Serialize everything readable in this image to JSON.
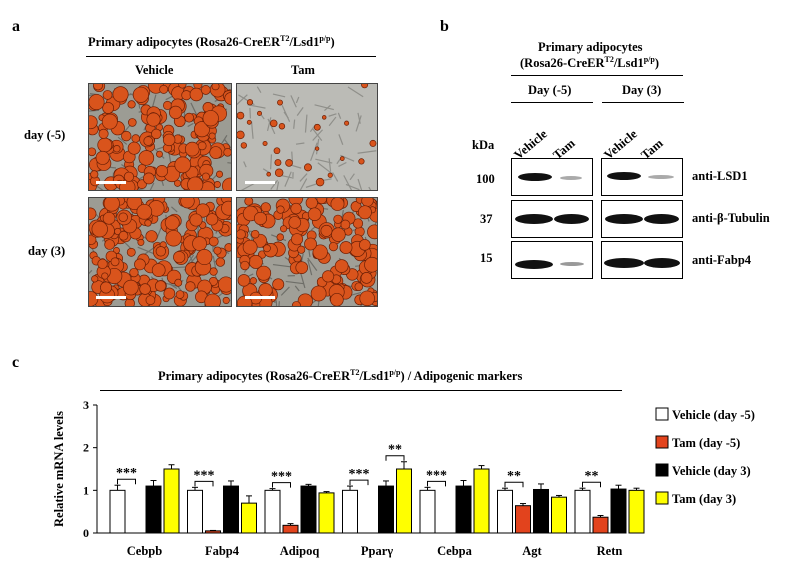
{
  "panel_a": {
    "label": "a",
    "title": "Primary adipocytes (Rosa26-CreER",
    "title_sup": "T2",
    "title_tail": "/Lsd1",
    "title_sup2": "p/p",
    "title_end": ")",
    "col_vehicle": "Vehicle",
    "col_tam": "Tam",
    "row1": "day (-5)",
    "row2": "day (3)",
    "colors": {
      "oil_red": "#d9541c",
      "background": "#a9a9a3"
    }
  },
  "panel_b": {
    "label": "b",
    "title_line1": "Primary adipocytes",
    "title_line2a": "(Rosa26-CreER",
    "title_sup": "T2",
    "title_line2b": "/Lsd1",
    "title_sup2": "p/p",
    "title_line2c": ")",
    "group1": "Day (-5)",
    "group2": "Day (3)",
    "lane_vehicle": "Vehicle",
    "lane_tam": "Tam",
    "kda": "kDa",
    "mw": [
      "100",
      "37",
      "15"
    ],
    "blots": [
      "anti-LSD1",
      "anti-β-Tubulin",
      "anti-Fabp4"
    ]
  },
  "panel_c": {
    "label": "c",
    "title_a": "Primary adipocytes (Rosa26-CreER",
    "title_sup": "T2",
    "title_b": "/Lsd1",
    "title_sup2": "p/p",
    "title_c": ") / Adipogenic markers"
  },
  "chart_data": {
    "type": "bar",
    "ylabel": "Relative mRNA levels",
    "ylim": [
      0,
      3
    ],
    "yticks": [
      "0",
      "1",
      "2",
      "3"
    ],
    "categories": [
      "Cebpb",
      "Fabp4",
      "Adipoq",
      "Pparγ",
      "Cebpa",
      "Agt",
      "Retn"
    ],
    "series": [
      {
        "name": "Vehicle (day -5)",
        "color": "#ffffff",
        "values": [
          1.0,
          1.0,
          1.0,
          1.0,
          1.0,
          1.0,
          1.0
        ],
        "err": [
          0.12,
          0.07,
          0.04,
          0.1,
          0.07,
          0.05,
          0.05
        ]
      },
      {
        "name": "Tam (day -5)",
        "color": "#e2431d",
        "values": [
          0.0,
          0.05,
          0.18,
          0.0,
          0.0,
          0.64,
          0.37
        ],
        "err": [
          0.0,
          0.01,
          0.04,
          0.0,
          0.0,
          0.05,
          0.04
        ]
      },
      {
        "name": "Vehicle (day 3)",
        "color": "#000000",
        "values": [
          1.1,
          1.1,
          1.1,
          1.1,
          1.1,
          1.02,
          1.03
        ],
        "err": [
          0.13,
          0.12,
          0.04,
          0.12,
          0.13,
          0.13,
          0.09
        ]
      },
      {
        "name": "Tam (day 3)",
        "color": "#ffff00",
        "values": [
          1.5,
          0.7,
          0.94,
          1.5,
          1.5,
          0.84,
          1.0
        ],
        "err": [
          0.1,
          0.17,
          0.03,
          0.17,
          0.08,
          0.04,
          0.05
        ]
      }
    ],
    "significance": [
      {
        "category": 0,
        "label": "***",
        "pair": [
          0,
          1
        ]
      },
      {
        "category": 1,
        "label": "***",
        "pair": [
          0,
          1
        ]
      },
      {
        "category": 2,
        "label": "***",
        "pair": [
          0,
          1
        ]
      },
      {
        "category": 3,
        "label": "***",
        "pair": [
          0,
          1
        ]
      },
      {
        "category": 3,
        "label": "**",
        "pair": [
          2,
          3
        ]
      },
      {
        "category": 4,
        "label": "***",
        "pair": [
          0,
          1
        ]
      },
      {
        "category": 5,
        "label": "**",
        "pair": [
          0,
          1
        ]
      },
      {
        "category": 6,
        "label": "**",
        "pair": [
          0,
          1
        ]
      }
    ],
    "legend_position": "right"
  }
}
